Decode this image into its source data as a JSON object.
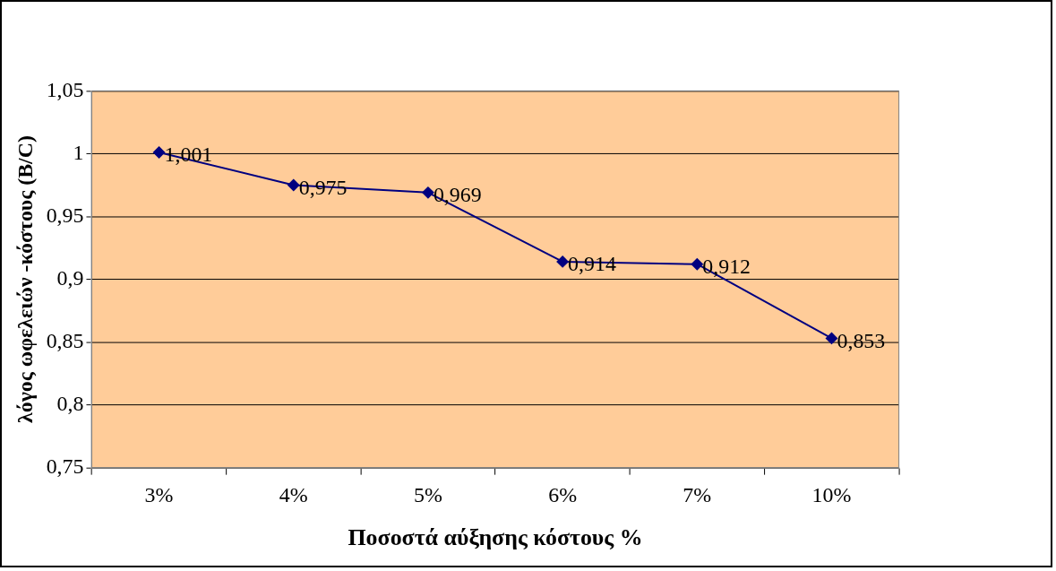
{
  "chart_data": {
    "type": "line",
    "xlabel": "Ποσοστά αύξησης κόστους %",
    "ylabel": "λόγος ωφελειών -κόστους (B/C)",
    "categories": [
      "3%",
      "4%",
      "5%",
      "6%",
      "7%",
      "10%"
    ],
    "series": [
      {
        "color": "#000080",
        "values": [
          1.001,
          0.975,
          0.969,
          0.914,
          0.912,
          0.853
        ],
        "value_labels": [
          "1,001",
          "0,975",
          "0,969",
          "0,914",
          "0,912",
          "0,853"
        ]
      }
    ],
    "ylim": [
      0.75,
      1.05
    ],
    "yticks": [
      {
        "value": 0.75,
        "label": "0,75"
      },
      {
        "value": 0.8,
        "label": "0,8"
      },
      {
        "value": 0.85,
        "label": "0,85"
      },
      {
        "value": 0.9,
        "label": "0,9"
      },
      {
        "value": 0.95,
        "label": "0,95"
      },
      {
        "value": 1,
        "label": "1"
      },
      {
        "value": 1.05,
        "label": "1,05"
      }
    ],
    "grid": "y",
    "legend": false,
    "marker": "diamond",
    "line_style": "solid"
  }
}
